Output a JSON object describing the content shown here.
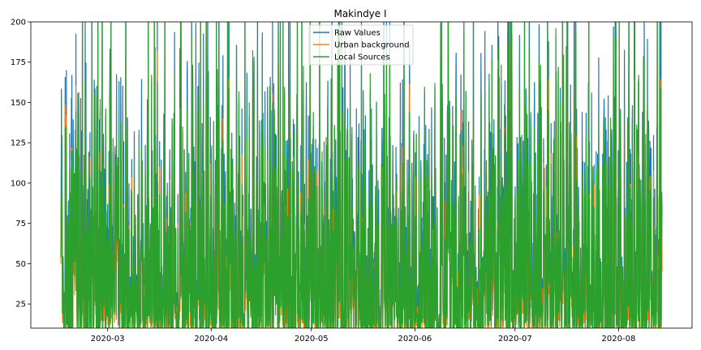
{
  "chart_data": {
    "type": "line",
    "title": "Makindye I",
    "xlabel": "",
    "ylabel": "",
    "x_range": [
      "2020-02-07",
      "2020-08-23"
    ],
    "ylim": [
      10,
      200
    ],
    "y_ticks": [
      25,
      50,
      75,
      100,
      125,
      150,
      175,
      200
    ],
    "x_ticks": [
      {
        "date": "2020-03-01",
        "label": "2020-03"
      },
      {
        "date": "2020-04-01",
        "label": "2020-04"
      },
      {
        "date": "2020-05-01",
        "label": "2020-05"
      },
      {
        "date": "2020-06-01",
        "label": "2020-06"
      },
      {
        "date": "2020-07-01",
        "label": "2020-07"
      },
      {
        "date": "2020-08-01",
        "label": "2020-08"
      }
    ],
    "data_start": "2020-02-16",
    "data_end": "2020-08-14",
    "grid": false,
    "legend_position": "upper-center",
    "series": [
      {
        "name": "Raw Values",
        "color": "#1f77b4"
      },
      {
        "name": "Urban background",
        "color": "#ff7f0e"
      },
      {
        "name": "Local Sources",
        "color": "#2ca02c"
      }
    ]
  }
}
